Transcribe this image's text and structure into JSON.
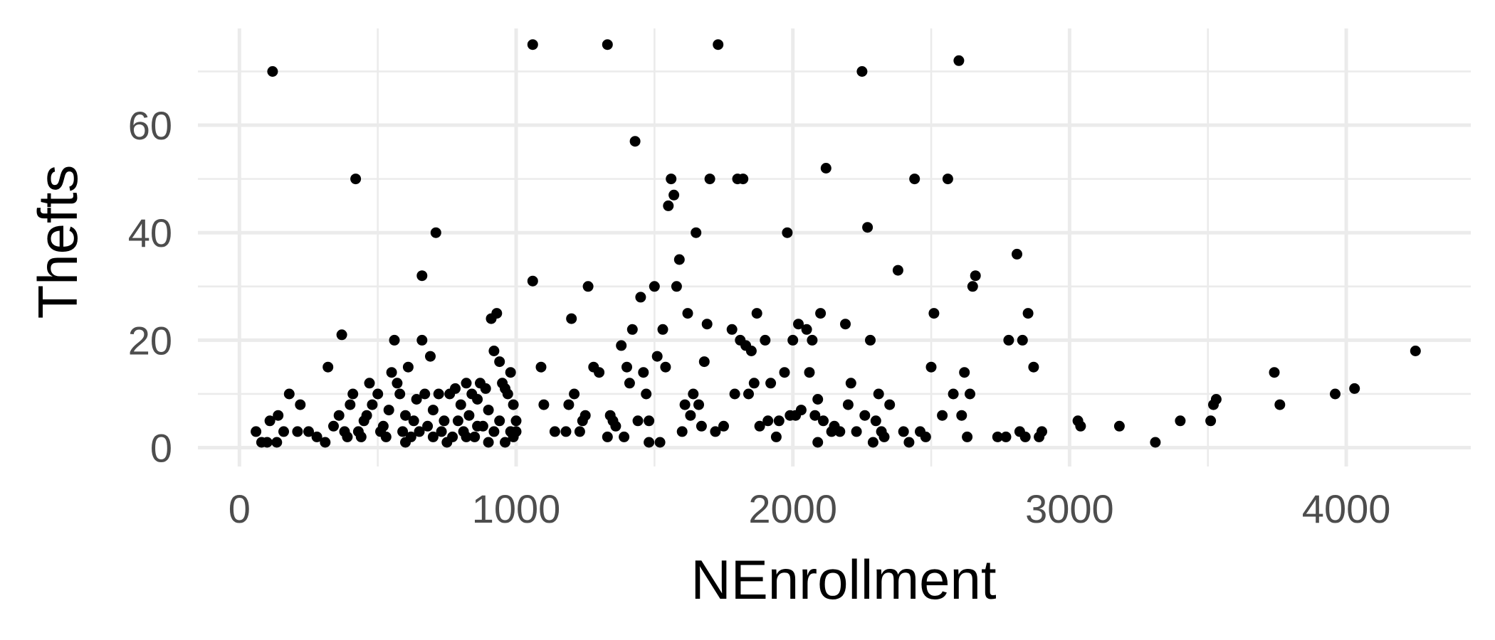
{
  "chart_data": {
    "type": "scatter",
    "xlabel": "NEnrollment",
    "ylabel": "Thefts",
    "xlim": [
      -150,
      4450
    ],
    "ylim": [
      -3.5,
      78
    ],
    "x_ticks": [
      0,
      1000,
      2000,
      3000,
      4000
    ],
    "x_tick_labels": [
      "0",
      "1000",
      "2000",
      "3000",
      "4000"
    ],
    "y_ticks": [
      0,
      20,
      40,
      60
    ],
    "y_tick_labels": [
      "0",
      "20",
      "40",
      "60"
    ],
    "x_minor": [
      500,
      1500,
      2500,
      3500
    ],
    "y_minor": [
      10,
      30,
      50,
      70
    ],
    "grid": true,
    "theme": "minimal",
    "points": [
      [
        120,
        70
      ],
      [
        420,
        50
      ],
      [
        710,
        40
      ],
      [
        660,
        32
      ],
      [
        370,
        21
      ],
      [
        320,
        15
      ],
      [
        180,
        10
      ],
      [
        220,
        8
      ],
      [
        250,
        3
      ],
      [
        160,
        3
      ],
      [
        60,
        3
      ],
      [
        80,
        1
      ],
      [
        100,
        1
      ],
      [
        140,
        6
      ],
      [
        110,
        5
      ],
      [
        135,
        1
      ],
      [
        210,
        3
      ],
      [
        280,
        2
      ],
      [
        310,
        1
      ],
      [
        340,
        4
      ],
      [
        360,
        6
      ],
      [
        390,
        2
      ],
      [
        400,
        8
      ],
      [
        410,
        10
      ],
      [
        430,
        3
      ],
      [
        450,
        5
      ],
      [
        470,
        12
      ],
      [
        480,
        8
      ],
      [
        500,
        10
      ],
      [
        520,
        4
      ],
      [
        530,
        2
      ],
      [
        540,
        7
      ],
      [
        550,
        14
      ],
      [
        560,
        20
      ],
      [
        570,
        12
      ],
      [
        580,
        10
      ],
      [
        590,
        3
      ],
      [
        600,
        6
      ],
      [
        610,
        15
      ],
      [
        620,
        2
      ],
      [
        630,
        5
      ],
      [
        640,
        9
      ],
      [
        650,
        3
      ],
      [
        660,
        20
      ],
      [
        670,
        10
      ],
      [
        680,
        4
      ],
      [
        690,
        17
      ],
      [
        700,
        7
      ],
      [
        720,
        10
      ],
      [
        730,
        3
      ],
      [
        740,
        5
      ],
      [
        760,
        10
      ],
      [
        770,
        2
      ],
      [
        780,
        11
      ],
      [
        790,
        5
      ],
      [
        800,
        8
      ],
      [
        810,
        3
      ],
      [
        820,
        12
      ],
      [
        830,
        6
      ],
      [
        840,
        10
      ],
      [
        850,
        2
      ],
      [
        860,
        9
      ],
      [
        870,
        12
      ],
      [
        880,
        4
      ],
      [
        890,
        11
      ],
      [
        900,
        7
      ],
      [
        910,
        24
      ],
      [
        920,
        18
      ],
      [
        930,
        25
      ],
      [
        940,
        16
      ],
      [
        950,
        12
      ],
      [
        960,
        11
      ],
      [
        970,
        10
      ],
      [
        980,
        14
      ],
      [
        990,
        2
      ],
      [
        1000,
        5
      ],
      [
        380,
        3
      ],
      [
        440,
        2
      ],
      [
        460,
        6
      ],
      [
        510,
        3
      ],
      [
        600,
        1
      ],
      [
        700,
        2
      ],
      [
        750,
        1
      ],
      [
        820,
        2
      ],
      [
        860,
        4
      ],
      [
        900,
        1
      ],
      [
        920,
        3
      ],
      [
        940,
        5
      ],
      [
        960,
        1
      ],
      [
        980,
        3
      ],
      [
        990,
        8
      ],
      [
        1000,
        3
      ],
      [
        1060,
        75
      ],
      [
        1330,
        75
      ],
      [
        1730,
        75
      ],
      [
        1060,
        31
      ],
      [
        1090,
        15
      ],
      [
        1100,
        8
      ],
      [
        1140,
        3
      ],
      [
        1180,
        3
      ],
      [
        1190,
        8
      ],
      [
        1200,
        24
      ],
      [
        1210,
        10
      ],
      [
        1230,
        3
      ],
      [
        1240,
        5
      ],
      [
        1250,
        6
      ],
      [
        1260,
        30
      ],
      [
        1280,
        15
      ],
      [
        1300,
        14
      ],
      [
        1330,
        2
      ],
      [
        1340,
        6
      ],
      [
        1360,
        4
      ],
      [
        1380,
        19
      ],
      [
        1390,
        2
      ],
      [
        1400,
        15
      ],
      [
        1410,
        12
      ],
      [
        1420,
        22
      ],
      [
        1430,
        57
      ],
      [
        1440,
        5
      ],
      [
        1450,
        28
      ],
      [
        1460,
        14
      ],
      [
        1470,
        10
      ],
      [
        1480,
        5
      ],
      [
        1500,
        30
      ],
      [
        1510,
        17
      ],
      [
        1520,
        1
      ],
      [
        1530,
        22
      ],
      [
        1540,
        15
      ],
      [
        1550,
        45
      ],
      [
        1560,
        50
      ],
      [
        1570,
        47
      ],
      [
        1580,
        30
      ],
      [
        1590,
        35
      ],
      [
        1600,
        3
      ],
      [
        1610,
        8
      ],
      [
        1620,
        25
      ],
      [
        1630,
        6
      ],
      [
        1640,
        10
      ],
      [
        1650,
        40
      ],
      [
        1660,
        8
      ],
      [
        1670,
        4
      ],
      [
        1680,
        16
      ],
      [
        1690,
        23
      ],
      [
        1700,
        50
      ],
      [
        1720,
        3
      ],
      [
        1750,
        4
      ],
      [
        1780,
        22
      ],
      [
        1790,
        10
      ],
      [
        1800,
        50
      ],
      [
        1810,
        20
      ],
      [
        1820,
        50
      ],
      [
        1830,
        19
      ],
      [
        1840,
        10
      ],
      [
        1850,
        18
      ],
      [
        1860,
        12
      ],
      [
        1870,
        25
      ],
      [
        1880,
        4
      ],
      [
        1900,
        20
      ],
      [
        1910,
        5
      ],
      [
        1920,
        12
      ],
      [
        1940,
        2
      ],
      [
        1950,
        5
      ],
      [
        1970,
        14
      ],
      [
        1980,
        40
      ],
      [
        1990,
        6
      ],
      [
        2000,
        20
      ],
      [
        2010,
        6
      ],
      [
        2020,
        23
      ],
      [
        2030,
        7
      ],
      [
        2050,
        22
      ],
      [
        2060,
        14
      ],
      [
        2070,
        20
      ],
      [
        2080,
        6
      ],
      [
        2090,
        9
      ],
      [
        2100,
        25
      ],
      [
        2110,
        5
      ],
      [
        2120,
        52
      ],
      [
        2140,
        3
      ],
      [
        2150,
        4
      ],
      [
        2170,
        3
      ],
      [
        2190,
        23
      ],
      [
        2200,
        8
      ],
      [
        2210,
        12
      ],
      [
        2230,
        3
      ],
      [
        2250,
        70
      ],
      [
        2260,
        6
      ],
      [
        2270,
        41
      ],
      [
        2280,
        20
      ],
      [
        2290,
        1
      ],
      [
        2300,
        5
      ],
      [
        2310,
        10
      ],
      [
        2320,
        3
      ],
      [
        2330,
        2
      ],
      [
        2350,
        8
      ],
      [
        2380,
        33
      ],
      [
        2400,
        3
      ],
      [
        2420,
        1
      ],
      [
        2440,
        50
      ],
      [
        2460,
        3
      ],
      [
        2480,
        2
      ],
      [
        2500,
        15
      ],
      [
        2510,
        25
      ],
      [
        2540,
        6
      ],
      [
        2560,
        50
      ],
      [
        2580,
        10
      ],
      [
        2600,
        72
      ],
      [
        2610,
        6
      ],
      [
        2620,
        14
      ],
      [
        2630,
        2
      ],
      [
        2640,
        10
      ],
      [
        2650,
        30
      ],
      [
        2660,
        32
      ],
      [
        2740,
        2
      ],
      [
        2770,
        2
      ],
      [
        2780,
        20
      ],
      [
        2810,
        36
      ],
      [
        2820,
        3
      ],
      [
        2830,
        20
      ],
      [
        2840,
        2
      ],
      [
        2850,
        25
      ],
      [
        2870,
        15
      ],
      [
        2890,
        2
      ],
      [
        2900,
        3
      ],
      [
        3030,
        5
      ],
      [
        3040,
        4
      ],
      [
        3180,
        4
      ],
      [
        3310,
        1
      ],
      [
        3400,
        5
      ],
      [
        3510,
        5
      ],
      [
        3520,
        8
      ],
      [
        3530,
        9
      ],
      [
        3740,
        14
      ],
      [
        3760,
        8
      ],
      [
        3960,
        10
      ],
      [
        4030,
        11
      ],
      [
        4250,
        18
      ],
      [
        2090,
        1
      ],
      [
        1480,
        1
      ],
      [
        1350,
        5
      ]
    ]
  }
}
